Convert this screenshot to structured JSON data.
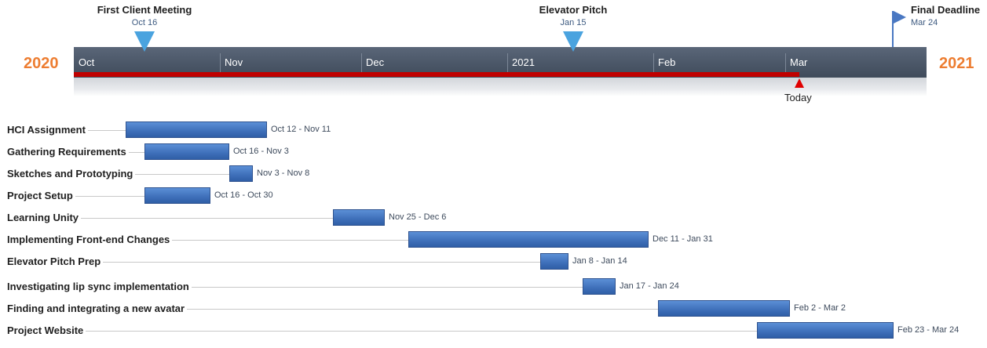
{
  "timeline": {
    "start_year": "2020",
    "end_year": "2021",
    "months": [
      "Oct",
      "Nov",
      "Dec",
      "2021",
      "Feb",
      "Mar"
    ],
    "today_label": "Today",
    "today": "Mar 4",
    "colors": {
      "band": "#4c5869",
      "progress": "#c00000",
      "milestone": "#4aa3df",
      "task": "#3e6fb9",
      "year": "#ed7d31"
    }
  },
  "milestones": [
    {
      "title": "First Client Meeting",
      "date": "Oct 16",
      "icon": "triangle-down-icon"
    },
    {
      "title": "Elevator Pitch",
      "date": "Jan 15",
      "icon": "triangle-down-icon"
    },
    {
      "title": "Final Deadline",
      "date": "Mar 24",
      "icon": "flag-icon"
    }
  ],
  "chart_data": {
    "type": "gantt",
    "title": "",
    "x_range": [
      "2020-10-01",
      "2021-03-31"
    ],
    "tasks": [
      {
        "name": "HCI Assignment",
        "start": "2020-10-12",
        "end": "2020-11-11",
        "label": "Oct 12 - Nov 11"
      },
      {
        "name": "Gathering Requirements",
        "start": "2020-10-16",
        "end": "2020-11-03",
        "label": "Oct 16 - Nov 3"
      },
      {
        "name": "Sketches and Prototyping",
        "start": "2020-11-03",
        "end": "2020-11-08",
        "label": "Nov 3 - Nov 8"
      },
      {
        "name": "Project Setup",
        "start": "2020-10-16",
        "end": "2020-10-30",
        "label": "Oct 16 - Oct 30"
      },
      {
        "name": "Learning Unity",
        "start": "2020-11-25",
        "end": "2020-12-06",
        "label": "Nov 25 - Dec 6"
      },
      {
        "name": "Implementing Front-end Changes",
        "start": "2020-12-11",
        "end": "2021-01-31",
        "label": "Dec 11 - Jan 31"
      },
      {
        "name": "Elevator Pitch Prep",
        "start": "2021-01-08",
        "end": "2021-01-14",
        "label": "Jan 8 - Jan 14"
      },
      {
        "name": "Investigating lip sync implementation",
        "start": "2021-01-17",
        "end": "2021-01-24",
        "label": "Jan 17 - Jan 24"
      },
      {
        "name": "Finding and integrating a new avatar",
        "start": "2021-02-02",
        "end": "2021-03-02",
        "label": "Feb 2 - Mar 2"
      },
      {
        "name": "Project Website",
        "start": "2021-02-23",
        "end": "2021-03-24",
        "label": "Feb 23 - Mar 24"
      }
    ]
  }
}
